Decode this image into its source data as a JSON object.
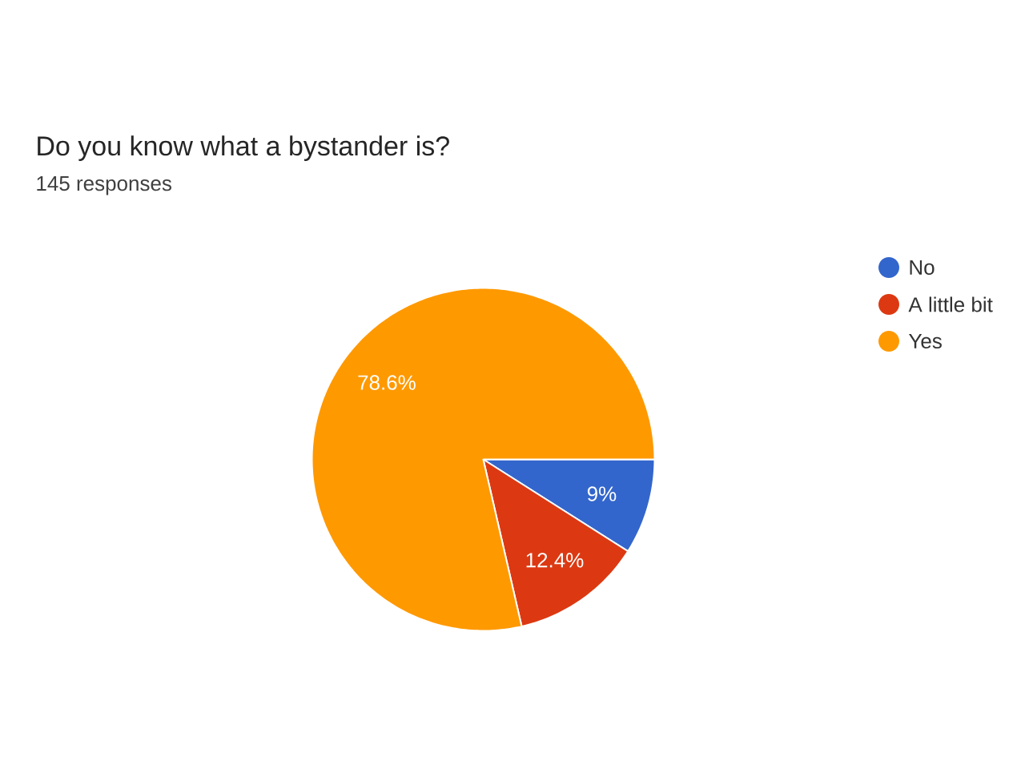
{
  "chart_data": {
    "type": "pie",
    "title": "Do you know what a bystander is?",
    "subtitle": "145 responses",
    "categories": [
      "No",
      "A little bit",
      "Yes"
    ],
    "values": [
      9,
      12.4,
      78.6
    ],
    "value_labels": [
      "9%",
      "12.4%",
      "78.6%"
    ],
    "colors": [
      "#3366cc",
      "#dc3912",
      "#ff9900"
    ],
    "legend": "right"
  }
}
